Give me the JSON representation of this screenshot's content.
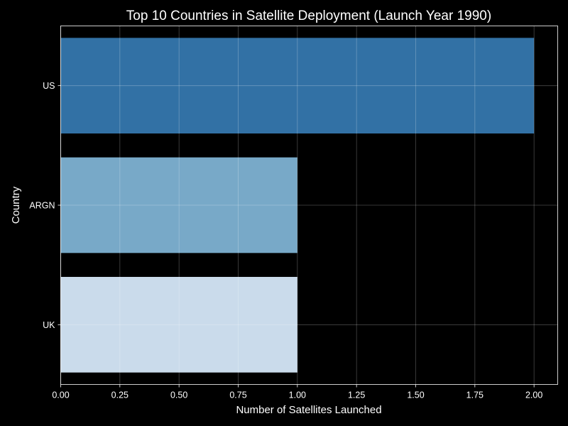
{
  "chart_data": {
    "type": "bar",
    "orientation": "horizontal",
    "title": "Top 10 Countries in Satellite Deployment (Launch Year 1990)",
    "xlabel": "Number of Satellites Launched",
    "ylabel": "Country",
    "categories": [
      "US",
      "ARGN",
      "UK"
    ],
    "values": [
      2,
      1,
      1
    ],
    "colors": [
      "#3271a5",
      "#78a9c8",
      "#cadbeb"
    ],
    "xlim": [
      0,
      2.1
    ],
    "xticks": [
      "0.00",
      "0.25",
      "0.50",
      "0.75",
      "1.00",
      "1.25",
      "1.50",
      "1.75",
      "2.00"
    ],
    "grid": true,
    "background": "#000000",
    "foreground": "#ffffff"
  }
}
